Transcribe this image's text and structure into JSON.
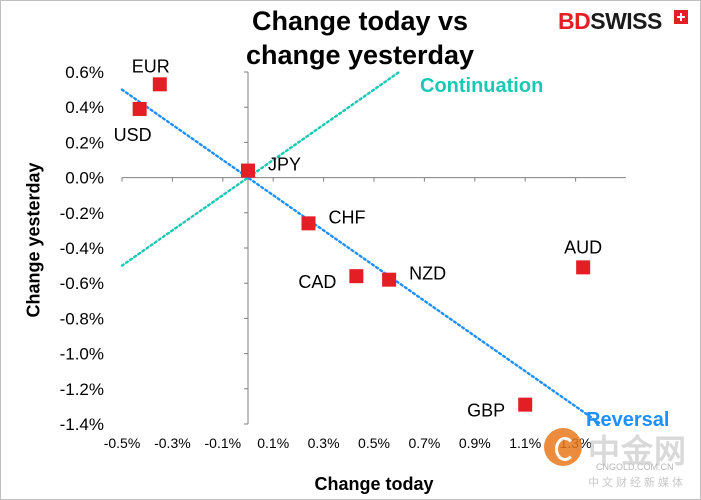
{
  "header": {
    "title_line1": "Change today vs",
    "title_line2": "change yesterday",
    "brand_bd": "BD",
    "brand_swiss": "SWISS"
  },
  "chart_data": {
    "type": "scatter",
    "title": "Change today vs change yesterday",
    "xlabel": "Change today",
    "ylabel": "Change yesterday",
    "xlim": [
      -0.5,
      1.5
    ],
    "ylim": [
      -1.4,
      0.6
    ],
    "x_ticks": [
      -0.5,
      -0.3,
      -0.1,
      0.1,
      0.3,
      0.5,
      0.7,
      0.9,
      1.1,
      1.3
    ],
    "x_tick_labels": [
      "-0.5%",
      "-0.3%",
      "-0.1%",
      "0.1%",
      "0.3%",
      "0.5%",
      "0.7%",
      "0.9%",
      "1.1%",
      "1.3%"
    ],
    "y_ticks": [
      0.6,
      0.4,
      0.2,
      0.0,
      -0.2,
      -0.4,
      -0.6,
      -0.8,
      -1.0,
      -1.2,
      -1.4
    ],
    "y_tick_labels": [
      "0.6%",
      "0.4%",
      "0.2%",
      "0.0%",
      "-0.2%",
      "-0.4%",
      "-0.6%",
      "-0.8%",
      "-1.0%",
      "-1.2%",
      "-1.4%"
    ],
    "grid": false,
    "marker_color": "#e31e24",
    "points": [
      {
        "label": "EUR",
        "x": -0.35,
        "y": 0.53,
        "label_pos": "above-left"
      },
      {
        "label": "USD",
        "x": -0.43,
        "y": 0.39,
        "label_pos": "below-left"
      },
      {
        "label": "JPY",
        "x": 0.0,
        "y": 0.04,
        "label_pos": "right"
      },
      {
        "label": "CHF",
        "x": 0.24,
        "y": -0.26,
        "label_pos": "right"
      },
      {
        "label": "CAD",
        "x": 0.43,
        "y": -0.56,
        "label_pos": "left"
      },
      {
        "label": "NZD",
        "x": 0.56,
        "y": -0.58,
        "label_pos": "right"
      },
      {
        "label": "AUD",
        "x": 1.33,
        "y": -0.51,
        "label_pos": "above"
      },
      {
        "label": "GBP",
        "x": 1.1,
        "y": -1.29,
        "label_pos": "left"
      }
    ],
    "lines": [
      {
        "name": "Continuation",
        "color": "#19c9b4",
        "from": [
          -0.5,
          -0.5
        ],
        "to": [
          0.6,
          0.6
        ]
      },
      {
        "name": "Reversal",
        "color": "#1e90ff",
        "from": [
          -0.5,
          0.5
        ],
        "to": [
          1.4,
          -1.4
        ]
      }
    ]
  },
  "watermark": {
    "text": "中金网",
    "domain": "CNGOLD.COM.CN",
    "sub": "中文财经新媒体"
  }
}
